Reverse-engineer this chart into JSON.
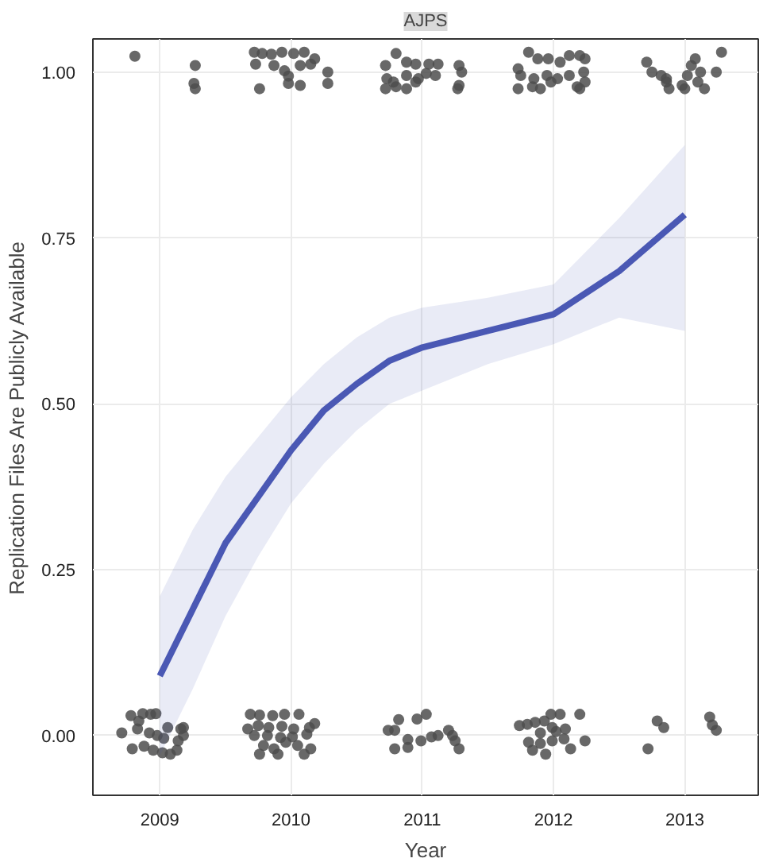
{
  "chart_data": {
    "type": "scatter",
    "title": "AJPS",
    "xlabel": "Year",
    "ylabel": "Replication Files Are Publicly Available",
    "xlim": [
      2008.49,
      2013.56
    ],
    "ylim": [
      -0.09,
      1.05
    ],
    "xticks": [
      2009,
      2010,
      2011,
      2012,
      2013
    ],
    "yticks": [
      {
        "value": 0,
        "label": "0.00"
      },
      {
        "value": 0.25,
        "label": "0.25"
      },
      {
        "value": 0.5,
        "label": "0.50"
      },
      {
        "value": 0.75,
        "label": "0.75"
      },
      {
        "value": 1,
        "label": "1.00"
      }
    ],
    "grid": true,
    "series": [
      {
        "type": "line",
        "marker": "none",
        "color": "#4a58b4",
        "x": [
          2009,
          2009.25,
          2009.5,
          2009.75,
          2010,
          2010.25,
          2010.5,
          2010.75,
          2011,
          2011.5,
          2012,
          2012.5,
          2013
        ],
        "values": [
          0.09,
          0.19,
          0.29,
          0.36,
          0.43,
          0.49,
          0.53,
          0.565,
          0.585,
          0.61,
          0.635,
          0.7,
          0.785
        ],
        "lower": [
          -0.03,
          0.07,
          0.18,
          0.27,
          0.35,
          0.41,
          0.46,
          0.5,
          0.52,
          0.56,
          0.59,
          0.63,
          0.61
        ],
        "upper": [
          0.21,
          0.31,
          0.39,
          0.45,
          0.51,
          0.56,
          0.6,
          0.63,
          0.645,
          0.66,
          0.68,
          0.78,
          0.89
        ]
      },
      {
        "marker": "circle",
        "color": "#4d4d4d",
        "x": [
          2008.81,
          2009.27,
          2009.26,
          2009.27,
          2009.72,
          2009.78,
          2009.85,
          2009.93,
          2010.02,
          2010.1,
          2010.18,
          2009.73,
          2009.87,
          2009.95,
          2009.98,
          2010.07,
          2010.15,
          2010.28,
          2009.76,
          2009.98,
          2010.07,
          2010.28,
          2010.72,
          2010.8,
          2010.88,
          2010.95,
          2011.05,
          2011.12,
          2011.28,
          2011.3,
          2010.73,
          2010.78,
          2010.88,
          2010.97,
          2011.03,
          2011.1,
          2010.72,
          2010.8,
          2010.88,
          2010.95,
          2011.28,
          2011.27,
          2011.73,
          2011.81,
          2011.88,
          2011.96,
          2012.05,
          2012.12,
          2012.2,
          2012.24,
          2011.75,
          2011.85,
          2011.95,
          2012.03,
          2012.12,
          2012.23,
          2011.73,
          2011.84,
          2011.9,
          2011.98,
          2012.18,
          2012.24,
          2012.2,
          2012.71,
          2012.75,
          2012.82,
          2012.86,
          2012.88,
          2012.86,
          2013.02,
          2013.05,
          2013.08,
          2013.12,
          2013.1,
          2013.15,
          2013.24,
          2013.28,
          2012.98,
          2013.0,
          2008.71,
          2008.78,
          2008.84,
          2008.87,
          2008.93,
          2008.97,
          2008.83,
          2008.92,
          2008.98,
          2009.03,
          2008.79,
          2008.88,
          2008.95,
          2009.02,
          2009.08,
          2009.13,
          2009.06,
          2009.16,
          2009.18,
          2009.18,
          2009.14,
          2009.69,
          2009.76,
          2009.86,
          2009.95,
          2010.06,
          2009.67,
          2009.75,
          2009.83,
          2009.93,
          2010.02,
          2010.14,
          2010.18,
          2009.72,
          2009.82,
          2009.92,
          2010.01,
          2010.12,
          2009.79,
          2009.87,
          2009.96,
          2010.05,
          2010.15,
          2009.76,
          2009.9,
          2010.1,
          2010.74,
          2010.79,
          2010.82,
          2010.96,
          2011.03,
          2010.89,
          2010.99,
          2011.07,
          2011.12,
          2011.2,
          2011.23,
          2011.25,
          2010.79,
          2010.89,
          2011.28,
          2011.74,
          2011.8,
          2011.86,
          2011.93,
          2011.98,
          2012.05,
          2012.2,
          2011.99,
          2012.02,
          2012.09,
          2011.9,
          2011.81,
          2011.9,
          2011.99,
          2012.08,
          2012.24,
          2011.84,
          2011.94,
          2012.13,
          2012.79,
          2012.84,
          2012.72,
          2013.19,
          2013.21,
          2013.24
        ],
        "values": [
          1.024,
          1.01,
          0.983,
          0.975,
          1.03,
          1.028,
          1.027,
          1.03,
          1.028,
          1.03,
          1.02,
          1.012,
          1.01,
          1.002,
          0.994,
          1.01,
          1.012,
          1.0,
          0.975,
          0.983,
          0.98,
          0.983,
          1.01,
          1.028,
          1.015,
          1.012,
          1.012,
          1.012,
          1.01,
          1.0,
          0.99,
          0.985,
          0.995,
          0.99,
          0.998,
          0.995,
          0.975,
          0.978,
          0.975,
          0.985,
          0.98,
          0.975,
          1.005,
          1.03,
          1.02,
          1.02,
          1.015,
          1.025,
          1.025,
          1.02,
          0.995,
          0.99,
          0.995,
          0.99,
          0.995,
          1.0,
          0.975,
          0.978,
          0.975,
          0.985,
          0.978,
          0.985,
          0.975,
          1.015,
          1.0,
          0.995,
          0.985,
          0.975,
          0.99,
          0.995,
          1.01,
          1.02,
          1.0,
          0.985,
          0.975,
          1.0,
          1.03,
          0.98,
          0.975,
          0.004,
          0.03,
          0.022,
          0.033,
          0.032,
          0.033,
          0.01,
          0.004,
          0.0,
          -0.004,
          -0.02,
          -0.016,
          -0.022,
          -0.026,
          -0.028,
          -0.022,
          0.012,
          0.01,
          0.0,
          0.012,
          -0.008,
          0.032,
          0.031,
          0.03,
          0.032,
          0.032,
          0.01,
          0.015,
          0.012,
          0.014,
          0.01,
          0.012,
          0.018,
          0.0,
          0.0,
          -0.003,
          -0.002,
          0.002,
          -0.015,
          -0.02,
          -0.01,
          -0.015,
          -0.02,
          -0.028,
          -0.028,
          -0.028,
          0.008,
          0.008,
          0.024,
          0.025,
          0.032,
          -0.006,
          -0.008,
          -0.002,
          0.0,
          0.008,
          0.0,
          -0.008,
          -0.02,
          -0.018,
          -0.02,
          0.015,
          0.017,
          0.02,
          0.022,
          0.032,
          0.032,
          0.032,
          0.012,
          0.006,
          0.01,
          0.004,
          -0.01,
          -0.012,
          -0.008,
          -0.005,
          -0.008,
          -0.022,
          -0.028,
          -0.02,
          0.022,
          0.012,
          -0.02,
          0.028,
          0.016,
          0.008
        ]
      }
    ]
  }
}
